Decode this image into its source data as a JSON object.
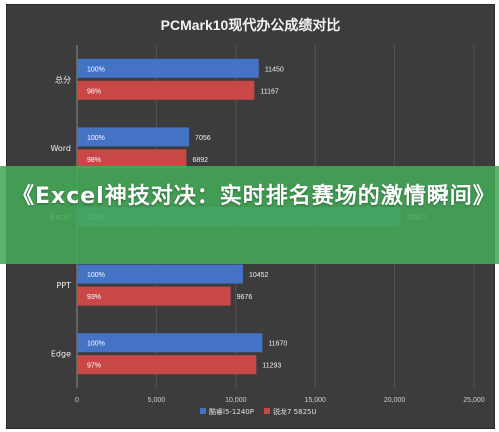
{
  "banner": {
    "text": "《Excel神技对决：实时排名赛场的激情瞬间》"
  },
  "chart_data": {
    "type": "bar",
    "orientation": "horizontal",
    "title": "PCMark10现代办公成绩对比",
    "categories": [
      "总分",
      "Word",
      "Excel",
      "PPT",
      "Edge"
    ],
    "series": [
      {
        "name": "酷睿i5-1240P",
        "color": "#4472c4",
        "values": [
          11450,
          7056,
          20387,
          10452,
          11670
        ],
        "inner_labels": [
          "100%",
          "100%",
          "102%",
          "100%",
          "100%"
        ]
      },
      {
        "name": "锐龙7 5825U",
        "color": "#c84848",
        "values": [
          11167,
          6892,
          null,
          9676,
          11293
        ],
        "inner_labels": [
          "98%",
          "98%",
          "",
          "93%",
          "97%"
        ]
      }
    ],
    "xlim": [
      0,
      25000
    ],
    "xticks": [
      0,
      5000,
      10000,
      15000,
      20000,
      25000
    ],
    "xtick_labels": [
      "0",
      "5,000",
      "10,000",
      "15,000",
      "20,000",
      "25,000"
    ],
    "grid": true,
    "legend": "bottom"
  }
}
